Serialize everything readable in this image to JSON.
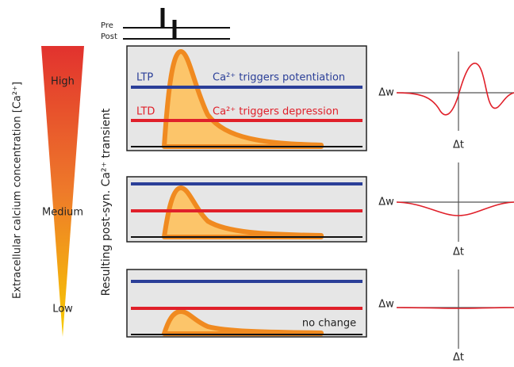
{
  "pre_post": {
    "pre": "Pre",
    "post": "Post"
  },
  "calcium_axis_label": "Extracellular calcium concentration [Ca²⁺]",
  "levels": [
    "High",
    "Medium",
    "Low"
  ],
  "transient_label": "Resulting post-syn. Ca²⁺ transient",
  "top_panel": {
    "ltp": "LTP",
    "ltp_text": "Ca²⁺ triggers potentiation",
    "ltd": "LTD",
    "ltd_text": "Ca²⁺ triggers depression"
  },
  "bottom_panel_note": "no change",
  "stdp_plots": [
    {
      "y_label": "Δw",
      "x_label": "Δt"
    },
    {
      "y_label": "Δw",
      "x_label": "Δt"
    },
    {
      "y_label": "Δw",
      "x_label": "Δt"
    }
  ]
}
